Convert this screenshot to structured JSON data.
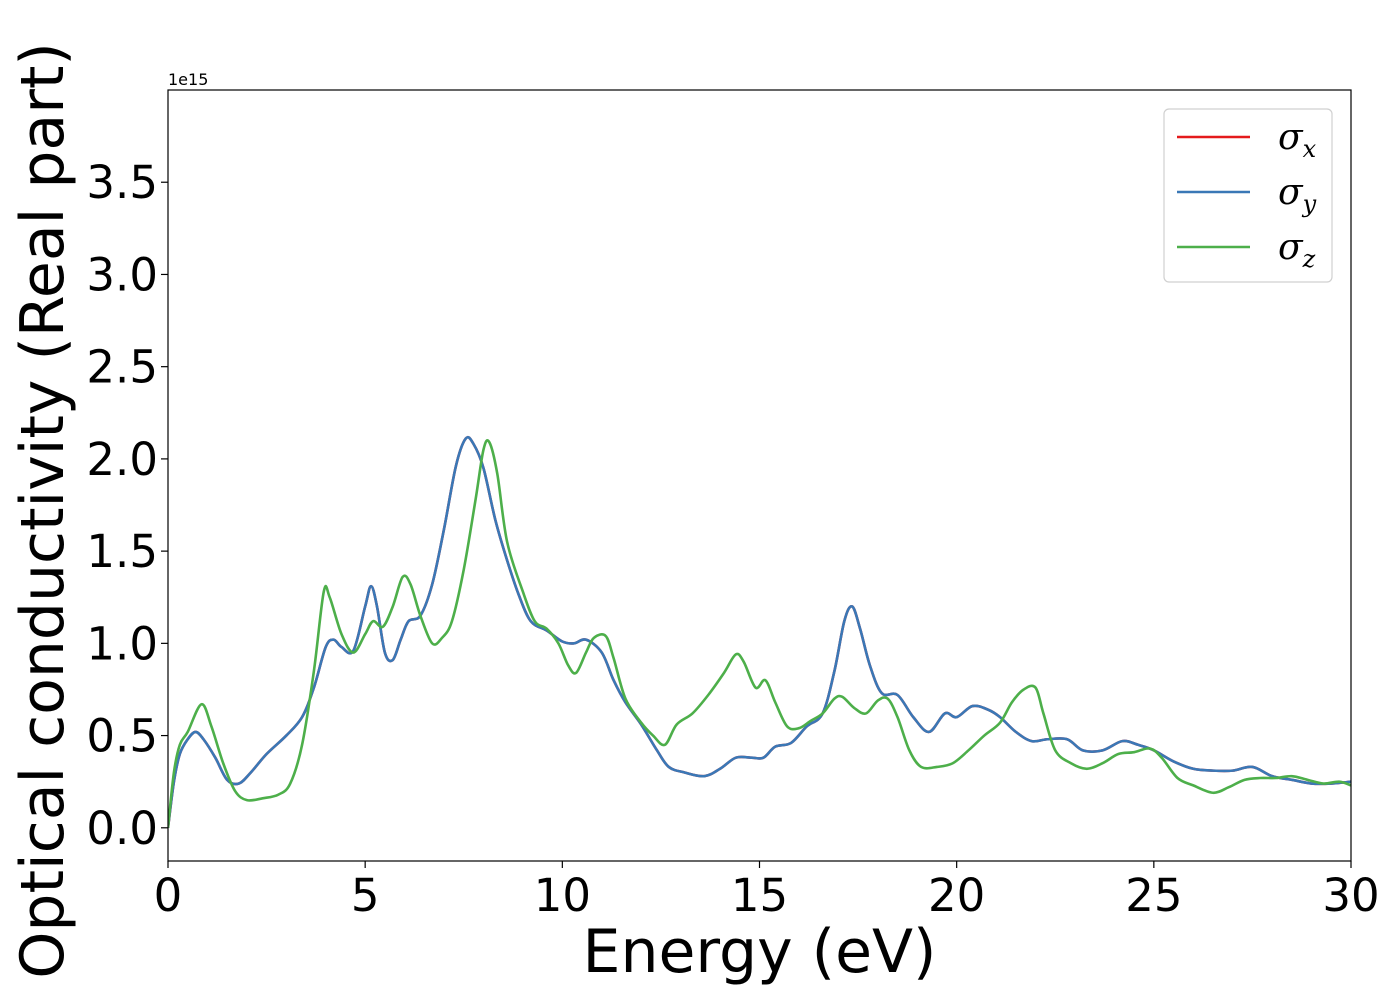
{
  "chart_data": {
    "type": "line",
    "xlabel": "Energy (eV)",
    "ylabel": "Optical conductivity (Real part)",
    "y_offset_label": "1e15",
    "xlim": [
      0,
      30
    ],
    "ylim": [
      -0.18,
      4.0
    ],
    "y_multiplier": 1000000000000000.0,
    "xticks": [
      0,
      5,
      10,
      15,
      20,
      25,
      30
    ],
    "xtick_labels": [
      "0",
      "5",
      "10",
      "15",
      "20",
      "25",
      "30"
    ],
    "yticks": [
      0.0,
      0.5,
      1.0,
      1.5,
      2.0,
      2.5,
      3.0,
      3.5
    ],
    "ytick_labels": [
      "0.0",
      "0.5",
      "1.0",
      "1.5",
      "2.0",
      "2.5",
      "3.0",
      "3.5"
    ],
    "grid": false,
    "legend_position": "top-right",
    "series": [
      {
        "name": "σ",
        "sub": "x",
        "color": "#e41a1c",
        "points": [
          [
            0,
            0
          ],
          [
            0.15,
            0.25
          ],
          [
            0.3,
            0.4
          ],
          [
            0.5,
            0.48
          ],
          [
            0.7,
            0.52
          ],
          [
            0.9,
            0.48
          ],
          [
            1.2,
            0.38
          ],
          [
            1.5,
            0.26
          ],
          [
            1.8,
            0.24
          ],
          [
            2.1,
            0.3
          ],
          [
            2.5,
            0.4
          ],
          [
            3.0,
            0.5
          ],
          [
            3.4,
            0.6
          ],
          [
            3.7,
            0.76
          ],
          [
            4.0,
            0.98
          ],
          [
            4.2,
            1.02
          ],
          [
            4.4,
            0.98
          ],
          [
            4.7,
            0.96
          ],
          [
            5.0,
            1.2
          ],
          [
            5.15,
            1.31
          ],
          [
            5.3,
            1.2
          ],
          [
            5.5,
            0.95
          ],
          [
            5.7,
            0.91
          ],
          [
            5.9,
            1.02
          ],
          [
            6.1,
            1.12
          ],
          [
            6.4,
            1.15
          ],
          [
            6.7,
            1.32
          ],
          [
            7.0,
            1.62
          ],
          [
            7.3,
            1.96
          ],
          [
            7.55,
            2.11
          ],
          [
            7.75,
            2.08
          ],
          [
            8.0,
            1.95
          ],
          [
            8.3,
            1.67
          ],
          [
            8.6,
            1.45
          ],
          [
            8.9,
            1.26
          ],
          [
            9.2,
            1.12
          ],
          [
            9.6,
            1.07
          ],
          [
            10.0,
            1.01
          ],
          [
            10.3,
            1.0
          ],
          [
            10.6,
            1.02
          ],
          [
            11.0,
            0.95
          ],
          [
            11.3,
            0.8
          ],
          [
            11.6,
            0.68
          ],
          [
            12.0,
            0.56
          ],
          [
            12.4,
            0.42
          ],
          [
            12.7,
            0.33
          ],
          [
            13.1,
            0.3
          ],
          [
            13.6,
            0.28
          ],
          [
            14.0,
            0.32
          ],
          [
            14.4,
            0.38
          ],
          [
            14.8,
            0.38
          ],
          [
            15.1,
            0.38
          ],
          [
            15.4,
            0.44
          ],
          [
            15.8,
            0.46
          ],
          [
            16.2,
            0.55
          ],
          [
            16.6,
            0.62
          ],
          [
            16.9,
            0.85
          ],
          [
            17.15,
            1.12
          ],
          [
            17.35,
            1.2
          ],
          [
            17.55,
            1.08
          ],
          [
            17.8,
            0.88
          ],
          [
            18.1,
            0.73
          ],
          [
            18.5,
            0.72
          ],
          [
            18.9,
            0.6
          ],
          [
            19.3,
            0.52
          ],
          [
            19.7,
            0.62
          ],
          [
            20.0,
            0.6
          ],
          [
            20.4,
            0.66
          ],
          [
            20.8,
            0.64
          ],
          [
            21.1,
            0.6
          ],
          [
            21.5,
            0.52
          ],
          [
            21.9,
            0.47
          ],
          [
            22.3,
            0.48
          ],
          [
            22.8,
            0.48
          ],
          [
            23.2,
            0.42
          ],
          [
            23.7,
            0.42
          ],
          [
            24.2,
            0.47
          ],
          [
            24.6,
            0.45
          ],
          [
            25.0,
            0.42
          ],
          [
            25.5,
            0.36
          ],
          [
            26.0,
            0.32
          ],
          [
            26.5,
            0.31
          ],
          [
            27.0,
            0.31
          ],
          [
            27.5,
            0.33
          ],
          [
            28.0,
            0.28
          ],
          [
            28.5,
            0.26
          ],
          [
            29.0,
            0.24
          ],
          [
            29.5,
            0.24
          ],
          [
            30.0,
            0.25
          ]
        ]
      },
      {
        "name": "σ",
        "sub": "y",
        "color": "#3a78b6",
        "points": [
          [
            0,
            0
          ],
          [
            0.15,
            0.25
          ],
          [
            0.3,
            0.4
          ],
          [
            0.5,
            0.48
          ],
          [
            0.7,
            0.52
          ],
          [
            0.9,
            0.48
          ],
          [
            1.2,
            0.38
          ],
          [
            1.5,
            0.26
          ],
          [
            1.8,
            0.24
          ],
          [
            2.1,
            0.3
          ],
          [
            2.5,
            0.4
          ],
          [
            3.0,
            0.5
          ],
          [
            3.4,
            0.6
          ],
          [
            3.7,
            0.76
          ],
          [
            4.0,
            0.98
          ],
          [
            4.2,
            1.02
          ],
          [
            4.4,
            0.98
          ],
          [
            4.7,
            0.96
          ],
          [
            5.0,
            1.2
          ],
          [
            5.15,
            1.31
          ],
          [
            5.3,
            1.2
          ],
          [
            5.5,
            0.95
          ],
          [
            5.7,
            0.91
          ],
          [
            5.9,
            1.02
          ],
          [
            6.1,
            1.12
          ],
          [
            6.4,
            1.15
          ],
          [
            6.7,
            1.32
          ],
          [
            7.0,
            1.62
          ],
          [
            7.3,
            1.96
          ],
          [
            7.55,
            2.11
          ],
          [
            7.75,
            2.08
          ],
          [
            8.0,
            1.95
          ],
          [
            8.3,
            1.67
          ],
          [
            8.6,
            1.45
          ],
          [
            8.9,
            1.26
          ],
          [
            9.2,
            1.12
          ],
          [
            9.6,
            1.07
          ],
          [
            10.0,
            1.01
          ],
          [
            10.3,
            1.0
          ],
          [
            10.6,
            1.02
          ],
          [
            11.0,
            0.95
          ],
          [
            11.3,
            0.8
          ],
          [
            11.6,
            0.68
          ],
          [
            12.0,
            0.56
          ],
          [
            12.4,
            0.42
          ],
          [
            12.7,
            0.33
          ],
          [
            13.1,
            0.3
          ],
          [
            13.6,
            0.28
          ],
          [
            14.0,
            0.32
          ],
          [
            14.4,
            0.38
          ],
          [
            14.8,
            0.38
          ],
          [
            15.1,
            0.38
          ],
          [
            15.4,
            0.44
          ],
          [
            15.8,
            0.46
          ],
          [
            16.2,
            0.55
          ],
          [
            16.6,
            0.62
          ],
          [
            16.9,
            0.85
          ],
          [
            17.15,
            1.12
          ],
          [
            17.35,
            1.2
          ],
          [
            17.55,
            1.08
          ],
          [
            17.8,
            0.88
          ],
          [
            18.1,
            0.73
          ],
          [
            18.5,
            0.72
          ],
          [
            18.9,
            0.6
          ],
          [
            19.3,
            0.52
          ],
          [
            19.7,
            0.62
          ],
          [
            20.0,
            0.6
          ],
          [
            20.4,
            0.66
          ],
          [
            20.8,
            0.64
          ],
          [
            21.1,
            0.6
          ],
          [
            21.5,
            0.52
          ],
          [
            21.9,
            0.47
          ],
          [
            22.3,
            0.48
          ],
          [
            22.8,
            0.48
          ],
          [
            23.2,
            0.42
          ],
          [
            23.7,
            0.42
          ],
          [
            24.2,
            0.47
          ],
          [
            24.6,
            0.45
          ],
          [
            25.0,
            0.42
          ],
          [
            25.5,
            0.36
          ],
          [
            26.0,
            0.32
          ],
          [
            26.5,
            0.31
          ],
          [
            27.0,
            0.31
          ],
          [
            27.5,
            0.33
          ],
          [
            28.0,
            0.28
          ],
          [
            28.5,
            0.26
          ],
          [
            29.0,
            0.24
          ],
          [
            29.5,
            0.24
          ],
          [
            30.0,
            0.25
          ]
        ]
      },
      {
        "name": "σ",
        "sub": "z",
        "color": "#4daf4a",
        "points": [
          [
            0,
            0
          ],
          [
            0.15,
            0.3
          ],
          [
            0.3,
            0.45
          ],
          [
            0.5,
            0.52
          ],
          [
            0.85,
            0.67
          ],
          [
            1.1,
            0.55
          ],
          [
            1.4,
            0.35
          ],
          [
            1.7,
            0.2
          ],
          [
            2.0,
            0.15
          ],
          [
            2.4,
            0.16
          ],
          [
            2.8,
            0.18
          ],
          [
            3.1,
            0.24
          ],
          [
            3.4,
            0.45
          ],
          [
            3.7,
            0.85
          ],
          [
            3.95,
            1.28
          ],
          [
            4.1,
            1.25
          ],
          [
            4.4,
            1.05
          ],
          [
            4.7,
            0.95
          ],
          [
            5.0,
            1.05
          ],
          [
            5.2,
            1.12
          ],
          [
            5.45,
            1.09
          ],
          [
            5.7,
            1.2
          ],
          [
            5.95,
            1.36
          ],
          [
            6.15,
            1.32
          ],
          [
            6.4,
            1.15
          ],
          [
            6.7,
            1.0
          ],
          [
            6.95,
            1.03
          ],
          [
            7.2,
            1.12
          ],
          [
            7.5,
            1.4
          ],
          [
            7.8,
            1.78
          ],
          [
            8.0,
            2.05
          ],
          [
            8.15,
            2.09
          ],
          [
            8.35,
            1.92
          ],
          [
            8.6,
            1.55
          ],
          [
            9.0,
            1.28
          ],
          [
            9.3,
            1.12
          ],
          [
            9.6,
            1.08
          ],
          [
            9.9,
            1.0
          ],
          [
            10.15,
            0.88
          ],
          [
            10.35,
            0.84
          ],
          [
            10.6,
            0.95
          ],
          [
            10.8,
            1.03
          ],
          [
            11.1,
            1.04
          ],
          [
            11.3,
            0.92
          ],
          [
            11.6,
            0.7
          ],
          [
            12.0,
            0.57
          ],
          [
            12.3,
            0.5
          ],
          [
            12.6,
            0.45
          ],
          [
            12.9,
            0.56
          ],
          [
            13.3,
            0.62
          ],
          [
            13.7,
            0.72
          ],
          [
            14.1,
            0.84
          ],
          [
            14.4,
            0.94
          ],
          [
            14.6,
            0.9
          ],
          [
            14.9,
            0.76
          ],
          [
            15.15,
            0.8
          ],
          [
            15.4,
            0.68
          ],
          [
            15.7,
            0.55
          ],
          [
            16.0,
            0.54
          ],
          [
            16.3,
            0.58
          ],
          [
            16.6,
            0.62
          ],
          [
            16.9,
            0.7
          ],
          [
            17.1,
            0.71
          ],
          [
            17.4,
            0.65
          ],
          [
            17.7,
            0.62
          ],
          [
            18.0,
            0.69
          ],
          [
            18.25,
            0.7
          ],
          [
            18.5,
            0.6
          ],
          [
            18.8,
            0.42
          ],
          [
            19.1,
            0.33
          ],
          [
            19.5,
            0.33
          ],
          [
            19.9,
            0.35
          ],
          [
            20.3,
            0.42
          ],
          [
            20.7,
            0.5
          ],
          [
            21.1,
            0.57
          ],
          [
            21.4,
            0.68
          ],
          [
            21.7,
            0.75
          ],
          [
            22.0,
            0.76
          ],
          [
            22.2,
            0.62
          ],
          [
            22.5,
            0.42
          ],
          [
            22.9,
            0.35
          ],
          [
            23.3,
            0.32
          ],
          [
            23.7,
            0.35
          ],
          [
            24.1,
            0.4
          ],
          [
            24.5,
            0.41
          ],
          [
            24.9,
            0.43
          ],
          [
            25.2,
            0.38
          ],
          [
            25.6,
            0.27
          ],
          [
            26.0,
            0.23
          ],
          [
            26.5,
            0.19
          ],
          [
            26.9,
            0.22
          ],
          [
            27.3,
            0.26
          ],
          [
            27.7,
            0.27
          ],
          [
            28.1,
            0.27
          ],
          [
            28.5,
            0.28
          ],
          [
            28.9,
            0.26
          ],
          [
            29.3,
            0.24
          ],
          [
            29.7,
            0.25
          ],
          [
            30.0,
            0.23
          ]
        ]
      }
    ]
  }
}
